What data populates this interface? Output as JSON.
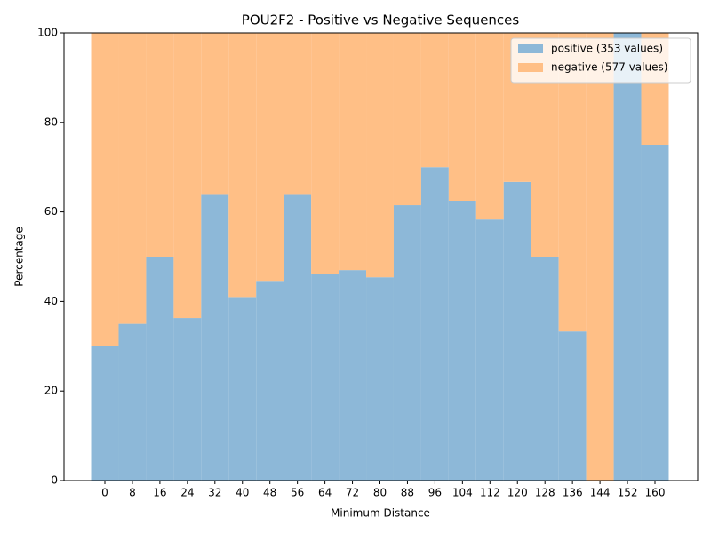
{
  "chart_data": {
    "type": "stacked_bar",
    "title": "POU2F2 - Positive vs Negative Sequences",
    "x_label": "Minimum Distance",
    "y_label": "Percentage",
    "categories": [
      "0",
      "8",
      "16",
      "24",
      "32",
      "40",
      "48",
      "56",
      "64",
      "72",
      "80",
      "88",
      "96",
      "104",
      "112",
      "120",
      "128",
      "136",
      "144",
      "152",
      "160"
    ],
    "series": [
      {
        "name": "positive (353 values)",
        "color": "#8db8d8",
        "values": [
          30,
          35,
          50,
          36.3,
          64,
          41,
          44.6,
          64,
          46.2,
          47,
          45.4,
          61.5,
          70,
          62.5,
          58.3,
          66.7,
          50,
          33.3,
          0,
          100,
          75
        ]
      },
      {
        "name": "negative (577 values)",
        "color": "#ffbf86",
        "values": [
          70,
          65,
          50,
          63.7,
          36,
          59,
          55.4,
          36,
          53.8,
          53,
          54.6,
          38.5,
          30,
          37.5,
          41.7,
          33.3,
          50,
          66.7,
          100,
          0,
          25
        ]
      }
    ],
    "ylim": [
      0,
      100
    ],
    "yticks": [
      0,
      20,
      40,
      60,
      80,
      100
    ],
    "legend": "upper right"
  }
}
